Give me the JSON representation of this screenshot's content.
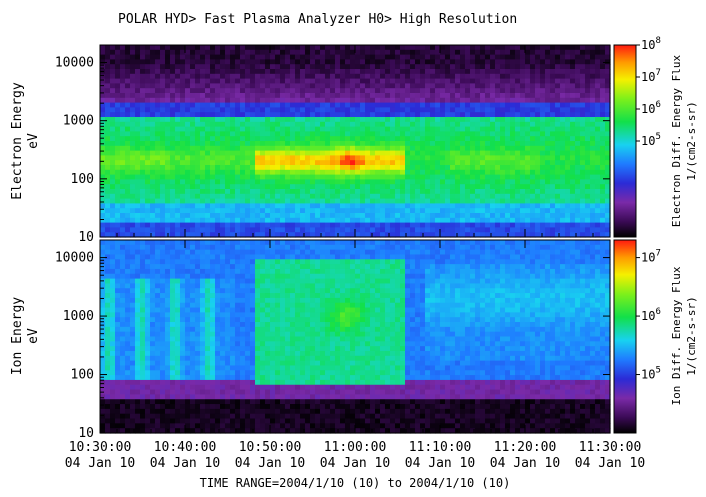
{
  "title": "POLAR  HYD> Fast Plasma Analyzer  H0> High Resolution",
  "time_range_label": "TIME RANGE=2004/1/10 (10) to 2004/1/10 (10)",
  "chart_data": [
    {
      "type": "heatmap",
      "panel": "electron",
      "ylabel_lines": [
        "Electron Energy",
        "eV"
      ],
      "yscale": "log",
      "ylim": [
        10,
        20000
      ],
      "yticks": [
        {
          "value": 10,
          "label": "10"
        },
        {
          "value": 100,
          "label": "100"
        },
        {
          "value": 1000,
          "label": "1000"
        },
        {
          "value": 10000,
          "label": "10000"
        }
      ],
      "colorbar": {
        "label_lines": [
          "Electron Diff. Energy Flux",
          "1/(cm2-s-sr)"
        ],
        "scale": "log",
        "range": [
          100,
          100000000
        ],
        "ticks": [
          {
            "exp": 5,
            "label": "10",
            "sup": "5"
          },
          {
            "exp": 6,
            "label": "10",
            "sup": "6"
          },
          {
            "exp": 7,
            "label": "10",
            "sup": "7"
          },
          {
            "exp": 8,
            "label": "10",
            "sup": "8"
          }
        ]
      }
    },
    {
      "type": "heatmap",
      "panel": "ion",
      "ylabel_lines": [
        "Ion Energy",
        "eV"
      ],
      "yscale": "log",
      "ylim": [
        10,
        20000
      ],
      "yticks": [
        {
          "value": 10,
          "label": "10"
        },
        {
          "value": 100,
          "label": "100"
        },
        {
          "value": 1000,
          "label": "1000"
        },
        {
          "value": 10000,
          "label": "10000"
        }
      ],
      "colorbar": {
        "label_lines": [
          "Ion Diff. Energy Flux",
          "1/(cm2-s-sr)"
        ],
        "scale": "log",
        "range": [
          10000,
          20000000
        ],
        "ticks": [
          {
            "exp": 5,
            "label": "10",
            "sup": "5"
          },
          {
            "exp": 6,
            "label": "10",
            "sup": "6"
          },
          {
            "exp": 7,
            "label": "10",
            "sup": "7"
          }
        ]
      }
    }
  ],
  "x_axis": {
    "range_minutes": [
      0,
      60
    ],
    "ticks": [
      {
        "minute": 0,
        "time": "10:30:00",
        "date": "04 Jan 10"
      },
      {
        "minute": 10,
        "time": "10:40:00",
        "date": "04 Jan 10"
      },
      {
        "minute": 20,
        "time": "10:50:00",
        "date": "04 Jan 10"
      },
      {
        "minute": 30,
        "time": "11:00:00",
        "date": "04 Jan 10"
      },
      {
        "minute": 40,
        "time": "11:10:00",
        "date": "04 Jan 10"
      },
      {
        "minute": 50,
        "time": "11:20:00",
        "date": "04 Jan 10"
      },
      {
        "minute": 60,
        "time": "11:30:00",
        "date": "04 Jan 10"
      }
    ]
  }
}
